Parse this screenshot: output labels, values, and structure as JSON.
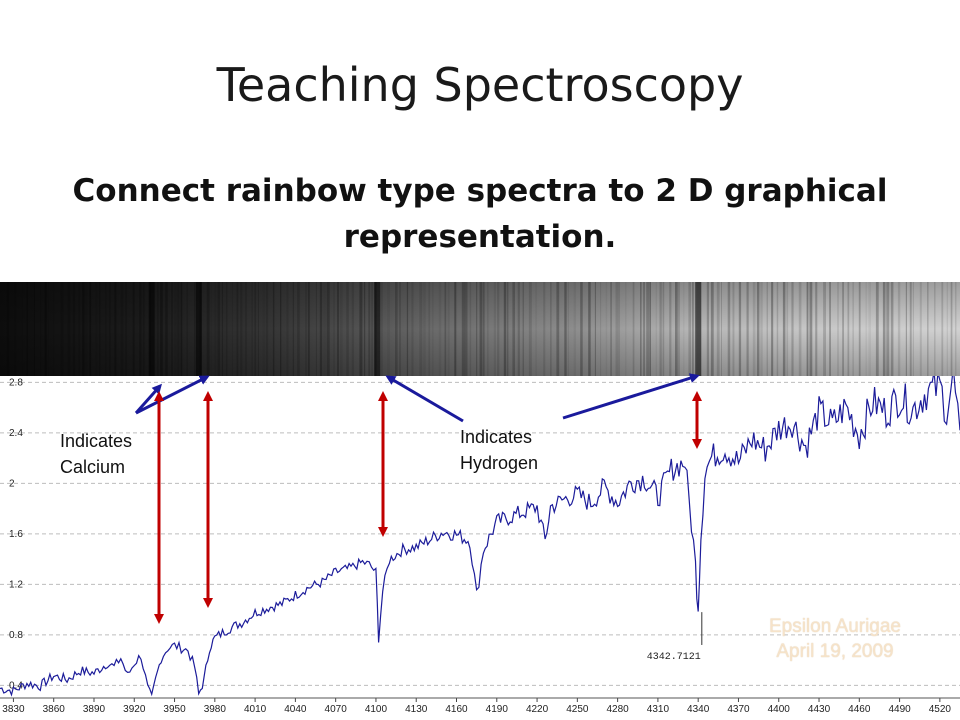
{
  "slide": {
    "title": "Teaching Spectroscopy",
    "subtitle": "Connect rainbow type spectra to 2 D graphical representation."
  },
  "annotations": {
    "calcium_line1": "Indicates",
    "calcium_line2": "Calcium",
    "hydrogen_line1": "Indicates",
    "hydrogen_line2": "Hydrogen",
    "arrow_color_blue": "#1a1a9c",
    "arrow_color_red": "#c00000"
  },
  "watermark": {
    "line1": "Epsilon Aurigae",
    "line2": "April 19, 2009"
  },
  "chart_data": {
    "type": "line",
    "title": "",
    "xlabel": "",
    "ylabel": "",
    "xlim": [
      3820,
      4535
    ],
    "ylim": [
      0.3,
      2.85
    ],
    "x_ticks": [
      3830,
      3860,
      3890,
      3920,
      3950,
      3980,
      4010,
      4040,
      4070,
      4100,
      4130,
      4160,
      4190,
      4220,
      4250,
      4280,
      4310,
      4340,
      4370,
      4400,
      4430,
      4460,
      4490,
      4520
    ],
    "y_ticks": [
      "0.4",
      "0.8",
      "1.2",
      "1.6",
      "2",
      "2.4",
      "2.8"
    ],
    "y_tick_values": [
      0.4,
      0.8,
      1.2,
      1.6,
      2.0,
      2.4,
      2.8
    ],
    "grid": true,
    "series_color": "#1c1c9a",
    "series": [
      {
        "x": [
          3820,
          3830,
          3840,
          3850,
          3860,
          3870,
          3880,
          3890,
          3900,
          3905,
          3910,
          3915,
          3920,
          3925,
          3930,
          3933,
          3936,
          3940,
          3945,
          3950,
          3955,
          3960,
          3965,
          3968,
          3972,
          3976,
          3980,
          3990,
          4000,
          4010,
          4020,
          4030,
          4040,
          4050,
          4060,
          4070,
          4080,
          4090,
          4095,
          4100,
          4102,
          4105,
          4110,
          4120,
          4130,
          4140,
          4150,
          4160,
          4170,
          4175,
          4180,
          4190,
          4200,
          4210,
          4220,
          4226,
          4230,
          4240,
          4250,
          4260,
          4270,
          4280,
          4290,
          4300,
          4310,
          4320,
          4330,
          4335,
          4338,
          4340,
          4342,
          4345,
          4350,
          4360,
          4370,
          4380,
          4390,
          4400,
          4410,
          4420,
          4430,
          4440,
          4450,
          4460,
          4470,
          4480,
          4490,
          4500,
          4510,
          4520,
          4525,
          4530,
          4535
        ],
        "y": [
          0.38,
          0.36,
          0.42,
          0.4,
          0.48,
          0.45,
          0.52,
          0.5,
          0.58,
          0.55,
          0.62,
          0.48,
          0.58,
          0.64,
          0.38,
          0.3,
          0.45,
          0.62,
          0.7,
          0.72,
          0.7,
          0.68,
          0.55,
          0.33,
          0.45,
          0.7,
          0.78,
          0.85,
          0.9,
          0.98,
          1.02,
          1.05,
          1.12,
          1.18,
          1.22,
          1.3,
          1.33,
          1.38,
          1.36,
          1.3,
          0.78,
          1.15,
          1.4,
          1.48,
          1.5,
          1.56,
          1.62,
          1.6,
          1.55,
          1.12,
          1.48,
          1.7,
          1.74,
          1.78,
          1.82,
          1.55,
          1.82,
          1.88,
          1.92,
          1.85,
          1.98,
          1.86,
          2.02,
          2.05,
          1.9,
          2.12,
          2.18,
          1.7,
          1.35,
          1.05,
          1.6,
          2.1,
          2.22,
          2.28,
          2.18,
          2.36,
          2.28,
          2.45,
          2.5,
          2.3,
          2.58,
          2.48,
          2.62,
          2.4,
          2.66,
          2.58,
          2.7,
          2.6,
          2.74,
          2.78,
          2.6,
          2.85,
          2.42
        ]
      }
    ],
    "annotation_label": "4342.7121"
  }
}
